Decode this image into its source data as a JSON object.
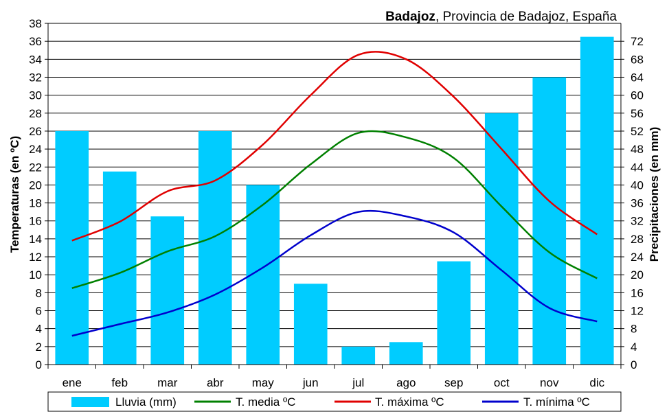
{
  "chart_data": {
    "type": "bar+line",
    "title_bold": "Badajoz",
    "title_rest": ", Provincia de Badajoz, España",
    "categories": [
      "ene",
      "feb",
      "mar",
      "abr",
      "may",
      "jun",
      "jul",
      "ago",
      "sep",
      "oct",
      "nov",
      "dic"
    ],
    "ylabel_left": "Temperaturas (en ºC)",
    "ylabel_right": "Precipitaciones (en mm)",
    "ylim_left": [
      0,
      38
    ],
    "yticks_left": [
      0,
      2,
      4,
      6,
      8,
      10,
      12,
      14,
      16,
      18,
      20,
      22,
      24,
      26,
      28,
      30,
      32,
      34,
      36,
      38
    ],
    "ylim_right": [
      0,
      76
    ],
    "yticks_right": [
      0,
      4,
      8,
      12,
      16,
      20,
      24,
      28,
      32,
      36,
      40,
      44,
      48,
      52,
      56,
      60,
      64,
      68,
      72
    ],
    "grid": true,
    "legend_position": "bottom",
    "bars": {
      "name": "Lluvia (mm)",
      "color": "#00CCFF",
      "axis": "right",
      "values": [
        52,
        43,
        33,
        52,
        40,
        18,
        4,
        5,
        23,
        56,
        64,
        73
      ]
    },
    "series": [
      {
        "name": "T. media ºC",
        "color": "#008000",
        "axis": "left",
        "values": [
          8.5,
          10.2,
          12.6,
          14.3,
          17.8,
          22.3,
          25.8,
          25.3,
          23.0,
          17.6,
          12.5,
          9.6
        ]
      },
      {
        "name": "T. máxima ºC",
        "color": "#E00000",
        "axis": "left",
        "values": [
          13.8,
          15.9,
          19.3,
          20.5,
          24.5,
          30.0,
          34.5,
          34.0,
          29.8,
          24.0,
          18.2,
          14.5
        ]
      },
      {
        "name": "T. mínima ºC",
        "color": "#0000CC",
        "axis": "left",
        "values": [
          3.2,
          4.5,
          5.8,
          7.8,
          10.8,
          14.4,
          17.0,
          16.5,
          14.7,
          10.5,
          6.3,
          4.8
        ]
      }
    ]
  }
}
